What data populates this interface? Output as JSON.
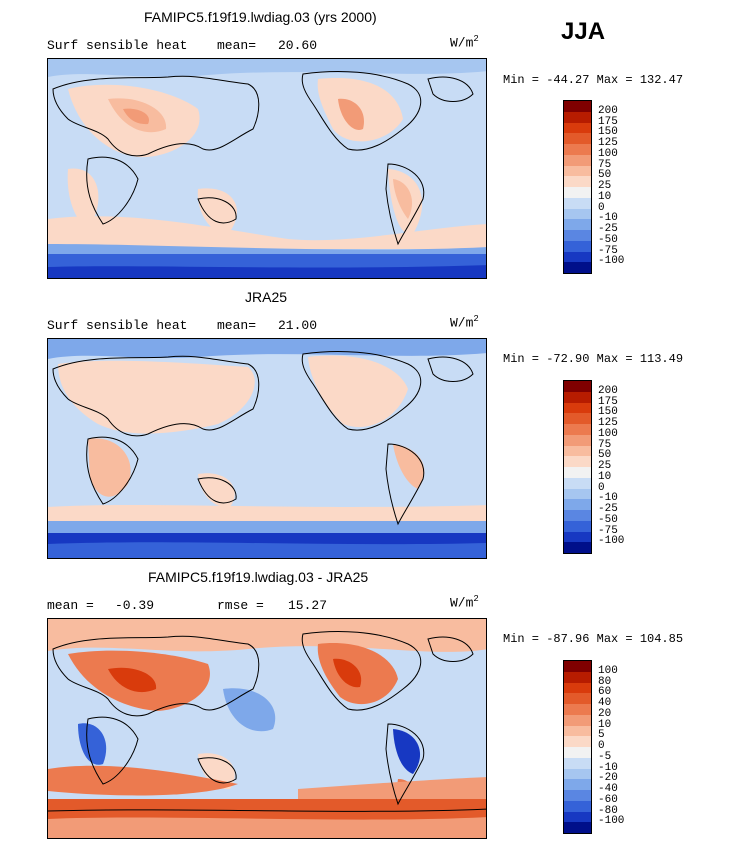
{
  "season": "JJA",
  "panels": [
    {
      "title": "FAMIPC5.f19f19.lwdiag.03 (yrs 2000)",
      "left_label": "Surf sensible heat",
      "stat_label": "mean=",
      "stat_value": "20.60",
      "stat2_label": "",
      "stat2_value": "",
      "unit_base": "W/m",
      "unit_exp": "2",
      "minmax": "Min = -44.27 Max = 132.47",
      "colorbar": {
        "labels": [
          "200",
          "175",
          "150",
          "125",
          "100",
          "75",
          "50",
          "25",
          "10",
          "0",
          "-10",
          "-25",
          "-50",
          "-75",
          "-100"
        ],
        "colors": [
          "#7f0000",
          "#b71c00",
          "#d93b0c",
          "#e35a2a",
          "#ec7a4f",
          "#f29b77",
          "#f8bc9f",
          "#fbd9c7",
          "#f2f2f2",
          "#c8dcf5",
          "#a6c6f0",
          "#7ea8ea",
          "#5a86e2",
          "#3562d8",
          "#1738c2",
          "#000f8a"
        ]
      }
    },
    {
      "title": "JRA25",
      "left_label": "Surf sensible heat",
      "stat_label": "mean=",
      "stat_value": "21.00",
      "stat2_label": "",
      "stat2_value": "",
      "unit_base": "W/m",
      "unit_exp": "2",
      "minmax": "Min = -72.90 Max = 113.49",
      "colorbar": {
        "labels": [
          "200",
          "175",
          "150",
          "125",
          "100",
          "75",
          "50",
          "25",
          "10",
          "0",
          "-10",
          "-25",
          "-50",
          "-75",
          "-100"
        ],
        "colors": [
          "#7f0000",
          "#b71c00",
          "#d93b0c",
          "#e35a2a",
          "#ec7a4f",
          "#f29b77",
          "#f8bc9f",
          "#fbd9c7",
          "#f2f2f2",
          "#c8dcf5",
          "#a6c6f0",
          "#7ea8ea",
          "#5a86e2",
          "#3562d8",
          "#1738c2",
          "#000f8a"
        ]
      }
    },
    {
      "title": "FAMIPC5.f19f19.lwdiag.03 - JRA25",
      "left_label": "mean =",
      "stat_label": "",
      "stat_value": "-0.39",
      "stat2_label": "rmse =",
      "stat2_value": "15.27",
      "unit_base": "W/m",
      "unit_exp": "2",
      "minmax": "Min = -87.96 Max = 104.85",
      "colorbar": {
        "labels": [
          "100",
          "80",
          "60",
          "40",
          "20",
          "10",
          "5",
          "0",
          "-5",
          "-10",
          "-20",
          "-40",
          "-60",
          "-80",
          "-100"
        ],
        "colors": [
          "#7f0000",
          "#b71c00",
          "#d93b0c",
          "#e35a2a",
          "#ec7a4f",
          "#f29b77",
          "#f8bc9f",
          "#fbd9c7",
          "#f2f2f2",
          "#c8dcf5",
          "#a6c6f0",
          "#7ea8ea",
          "#5a86e2",
          "#3562d8",
          "#1738c2",
          "#000f8a"
        ]
      }
    }
  ]
}
